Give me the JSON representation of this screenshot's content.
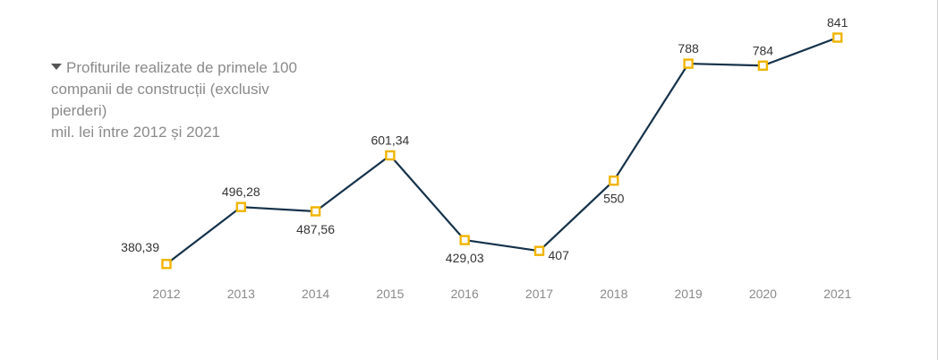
{
  "chart_data": {
    "type": "line",
    "title": "",
    "legend_position": "top-left",
    "grid": false,
    "categories": [
      "2012",
      "2013",
      "2014",
      "2015",
      "2016",
      "2017",
      "2018",
      "2019",
      "2020",
      "2021"
    ],
    "values": [
      380.39,
      496.28,
      487.56,
      601.34,
      429.03,
      407,
      550,
      788,
      784,
      841
    ],
    "value_labels": [
      "380,39",
      "496,28",
      "487,56",
      "601,34",
      "429,03",
      "407",
      "550",
      "788",
      "784",
      "841"
    ],
    "series": [
      {
        "legend_lines": [
          "Profiturile realizate de primele 100",
          "companii de construcții (exclusiv pierderi)",
          "mil. lei între 2012 și 2021"
        ]
      }
    ],
    "ylim": [
      380,
      841
    ],
    "colors": {
      "line": "#15324a",
      "marker": "#f0b400",
      "marker_fill": "#ffffff"
    }
  }
}
